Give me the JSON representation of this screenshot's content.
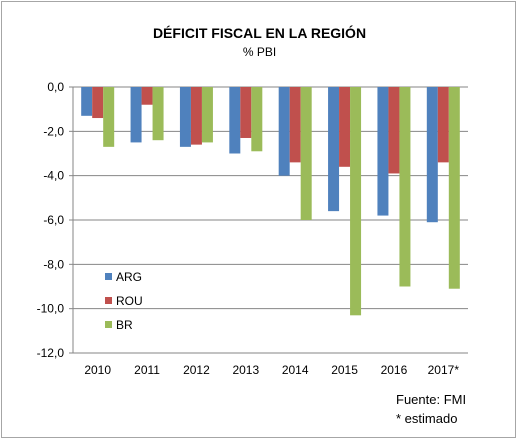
{
  "chart_data": {
    "type": "bar",
    "title": "DÉFICIT FISCAL EN LA REGIÓN",
    "subtitle": "% PBI",
    "categories": [
      "2010",
      "2011",
      "2012",
      "2013",
      "2014",
      "2015",
      "2016",
      "2017*"
    ],
    "series": [
      {
        "name": "ARG",
        "color": "#4f81bd",
        "values": [
          -1.3,
          -2.5,
          -2.7,
          -3.0,
          -4.0,
          -5.6,
          -5.8,
          -6.1
        ]
      },
      {
        "name": "ROU",
        "color": "#c0504d",
        "values": [
          -1.4,
          -0.8,
          -2.6,
          -2.3,
          -3.4,
          -3.6,
          -3.9,
          -3.4
        ]
      },
      {
        "name": "BR",
        "color": "#9bbb59",
        "values": [
          -2.7,
          -2.4,
          -2.5,
          -2.9,
          -6.0,
          -10.3,
          -9.0,
          -9.1
        ]
      }
    ],
    "ylim": [
      -12.0,
      0.0
    ],
    "yticks": [
      "0,0",
      "-2,0",
      "-4,0",
      "-6,0",
      "-8,0",
      "-10,0",
      "-12,0"
    ],
    "grid": true,
    "legend_position": "bottom-left"
  },
  "notes": {
    "source": "Fuente: FMI",
    "estimate": "* estimado"
  }
}
